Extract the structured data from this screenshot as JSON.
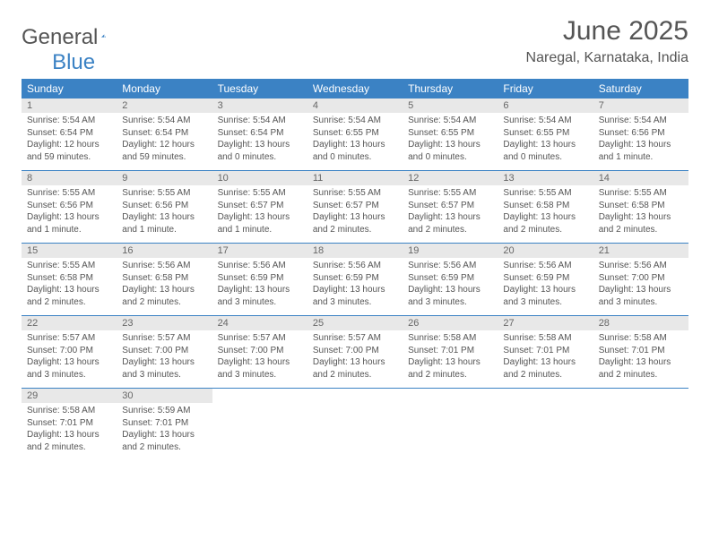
{
  "brand": {
    "word1": "General",
    "word2": "Blue"
  },
  "title": "June 2025",
  "location": "Naregal, Karnataka, India",
  "colors": {
    "header_bg": "#3b82c4",
    "header_text": "#ffffff",
    "daynum_bg": "#e8e8e8",
    "text": "#555555",
    "rule": "#3b82c4"
  },
  "day_names": [
    "Sunday",
    "Monday",
    "Tuesday",
    "Wednesday",
    "Thursday",
    "Friday",
    "Saturday"
  ],
  "weeks": [
    {
      "days": [
        {
          "n": "1",
          "sr": "Sunrise: 5:54 AM",
          "ss": "Sunset: 6:54 PM",
          "dl": "Daylight: 12 hours and 59 minutes."
        },
        {
          "n": "2",
          "sr": "Sunrise: 5:54 AM",
          "ss": "Sunset: 6:54 PM",
          "dl": "Daylight: 12 hours and 59 minutes."
        },
        {
          "n": "3",
          "sr": "Sunrise: 5:54 AM",
          "ss": "Sunset: 6:54 PM",
          "dl": "Daylight: 13 hours and 0 minutes."
        },
        {
          "n": "4",
          "sr": "Sunrise: 5:54 AM",
          "ss": "Sunset: 6:55 PM",
          "dl": "Daylight: 13 hours and 0 minutes."
        },
        {
          "n": "5",
          "sr": "Sunrise: 5:54 AM",
          "ss": "Sunset: 6:55 PM",
          "dl": "Daylight: 13 hours and 0 minutes."
        },
        {
          "n": "6",
          "sr": "Sunrise: 5:54 AM",
          "ss": "Sunset: 6:55 PM",
          "dl": "Daylight: 13 hours and 0 minutes."
        },
        {
          "n": "7",
          "sr": "Sunrise: 5:54 AM",
          "ss": "Sunset: 6:56 PM",
          "dl": "Daylight: 13 hours and 1 minute."
        }
      ]
    },
    {
      "days": [
        {
          "n": "8",
          "sr": "Sunrise: 5:55 AM",
          "ss": "Sunset: 6:56 PM",
          "dl": "Daylight: 13 hours and 1 minute."
        },
        {
          "n": "9",
          "sr": "Sunrise: 5:55 AM",
          "ss": "Sunset: 6:56 PM",
          "dl": "Daylight: 13 hours and 1 minute."
        },
        {
          "n": "10",
          "sr": "Sunrise: 5:55 AM",
          "ss": "Sunset: 6:57 PM",
          "dl": "Daylight: 13 hours and 1 minute."
        },
        {
          "n": "11",
          "sr": "Sunrise: 5:55 AM",
          "ss": "Sunset: 6:57 PM",
          "dl": "Daylight: 13 hours and 2 minutes."
        },
        {
          "n": "12",
          "sr": "Sunrise: 5:55 AM",
          "ss": "Sunset: 6:57 PM",
          "dl": "Daylight: 13 hours and 2 minutes."
        },
        {
          "n": "13",
          "sr": "Sunrise: 5:55 AM",
          "ss": "Sunset: 6:58 PM",
          "dl": "Daylight: 13 hours and 2 minutes."
        },
        {
          "n": "14",
          "sr": "Sunrise: 5:55 AM",
          "ss": "Sunset: 6:58 PM",
          "dl": "Daylight: 13 hours and 2 minutes."
        }
      ]
    },
    {
      "days": [
        {
          "n": "15",
          "sr": "Sunrise: 5:55 AM",
          "ss": "Sunset: 6:58 PM",
          "dl": "Daylight: 13 hours and 2 minutes."
        },
        {
          "n": "16",
          "sr": "Sunrise: 5:56 AM",
          "ss": "Sunset: 6:58 PM",
          "dl": "Daylight: 13 hours and 2 minutes."
        },
        {
          "n": "17",
          "sr": "Sunrise: 5:56 AM",
          "ss": "Sunset: 6:59 PM",
          "dl": "Daylight: 13 hours and 3 minutes."
        },
        {
          "n": "18",
          "sr": "Sunrise: 5:56 AM",
          "ss": "Sunset: 6:59 PM",
          "dl": "Daylight: 13 hours and 3 minutes."
        },
        {
          "n": "19",
          "sr": "Sunrise: 5:56 AM",
          "ss": "Sunset: 6:59 PM",
          "dl": "Daylight: 13 hours and 3 minutes."
        },
        {
          "n": "20",
          "sr": "Sunrise: 5:56 AM",
          "ss": "Sunset: 6:59 PM",
          "dl": "Daylight: 13 hours and 3 minutes."
        },
        {
          "n": "21",
          "sr": "Sunrise: 5:56 AM",
          "ss": "Sunset: 7:00 PM",
          "dl": "Daylight: 13 hours and 3 minutes."
        }
      ]
    },
    {
      "days": [
        {
          "n": "22",
          "sr": "Sunrise: 5:57 AM",
          "ss": "Sunset: 7:00 PM",
          "dl": "Daylight: 13 hours and 3 minutes."
        },
        {
          "n": "23",
          "sr": "Sunrise: 5:57 AM",
          "ss": "Sunset: 7:00 PM",
          "dl": "Daylight: 13 hours and 3 minutes."
        },
        {
          "n": "24",
          "sr": "Sunrise: 5:57 AM",
          "ss": "Sunset: 7:00 PM",
          "dl": "Daylight: 13 hours and 3 minutes."
        },
        {
          "n": "25",
          "sr": "Sunrise: 5:57 AM",
          "ss": "Sunset: 7:00 PM",
          "dl": "Daylight: 13 hours and 2 minutes."
        },
        {
          "n": "26",
          "sr": "Sunrise: 5:58 AM",
          "ss": "Sunset: 7:01 PM",
          "dl": "Daylight: 13 hours and 2 minutes."
        },
        {
          "n": "27",
          "sr": "Sunrise: 5:58 AM",
          "ss": "Sunset: 7:01 PM",
          "dl": "Daylight: 13 hours and 2 minutes."
        },
        {
          "n": "28",
          "sr": "Sunrise: 5:58 AM",
          "ss": "Sunset: 7:01 PM",
          "dl": "Daylight: 13 hours and 2 minutes."
        }
      ]
    },
    {
      "days": [
        {
          "n": "29",
          "sr": "Sunrise: 5:58 AM",
          "ss": "Sunset: 7:01 PM",
          "dl": "Daylight: 13 hours and 2 minutes."
        },
        {
          "n": "30",
          "sr": "Sunrise: 5:59 AM",
          "ss": "Sunset: 7:01 PM",
          "dl": "Daylight: 13 hours and 2 minutes."
        },
        {
          "empty": true
        },
        {
          "empty": true
        },
        {
          "empty": true
        },
        {
          "empty": true
        },
        {
          "empty": true
        }
      ]
    }
  ]
}
